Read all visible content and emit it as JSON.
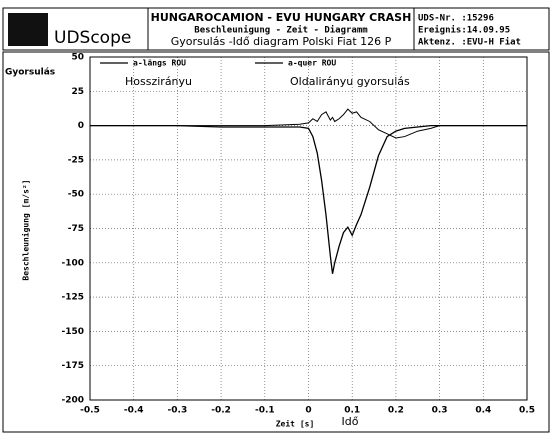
{
  "header": {
    "logo": "UDScope",
    "title_lines": [
      "HUNGAROCAMION - EVU HUNGARY CRASH",
      "Beschleunigung - Zeit - Diagramm",
      "Gyorsulás -Idő diagram Polski Fiat 126 P"
    ],
    "info_lines": [
      "UDS-Nr. :15296",
      "Ereignis:14.09.95",
      "Aktenz. :EVU-H Fiat"
    ]
  },
  "chart_data": {
    "type": "line",
    "y_title_top": "Gyorsulás",
    "y_label": "Beschleunigung [m/s²]",
    "x_label": "Zeit [s]",
    "x_label_extra": "Idő",
    "annotations": [
      "Hosszirányu",
      "Oldalirányu  gyorsulás"
    ],
    "x": [
      -0.5,
      -0.4,
      -0.3,
      -0.2,
      -0.1,
      -0.02,
      0,
      0.01,
      0.02,
      0.03,
      0.04,
      0.05,
      0.055,
      0.06,
      0.07,
      0.08,
      0.09,
      0.1,
      0.11,
      0.12,
      0.14,
      0.16,
      0.18,
      0.2,
      0.22,
      0.25,
      0.28,
      0.3,
      0.4,
      0.5
    ],
    "series": [
      {
        "name": "a-längs ROU",
        "color": "#000000",
        "values": [
          0,
          0,
          0,
          -1,
          -1,
          -1,
          -2,
          -8,
          -20,
          -40,
          -65,
          -95,
          -108,
          -100,
          -88,
          -78,
          -74,
          -80,
          -72,
          -65,
          -45,
          -22,
          -8,
          -4,
          -2,
          -1,
          0,
          0,
          0,
          0
        ]
      },
      {
        "name": "a-quer ROU",
        "color": "#000000",
        "values": [
          0,
          0,
          0,
          0,
          0,
          1,
          2,
          5,
          3,
          8,
          10,
          4,
          6,
          3,
          5,
          8,
          12,
          9,
          10,
          6,
          3,
          -3,
          -6,
          -9,
          -8,
          -4,
          -2,
          0,
          0,
          0
        ]
      }
    ],
    "xlim": [
      -0.5,
      0.5
    ],
    "xticks": [
      -0.5,
      -0.4,
      -0.3,
      -0.2,
      -0.1,
      0,
      0.1,
      0.2,
      0.3,
      0.4,
      0.5
    ],
    "ylim": [
      -200,
      50
    ],
    "yticks": [
      50,
      25,
      0,
      -25,
      -50,
      -75,
      -100,
      -125,
      -150,
      -175,
      -200
    ],
    "grid": true
  }
}
